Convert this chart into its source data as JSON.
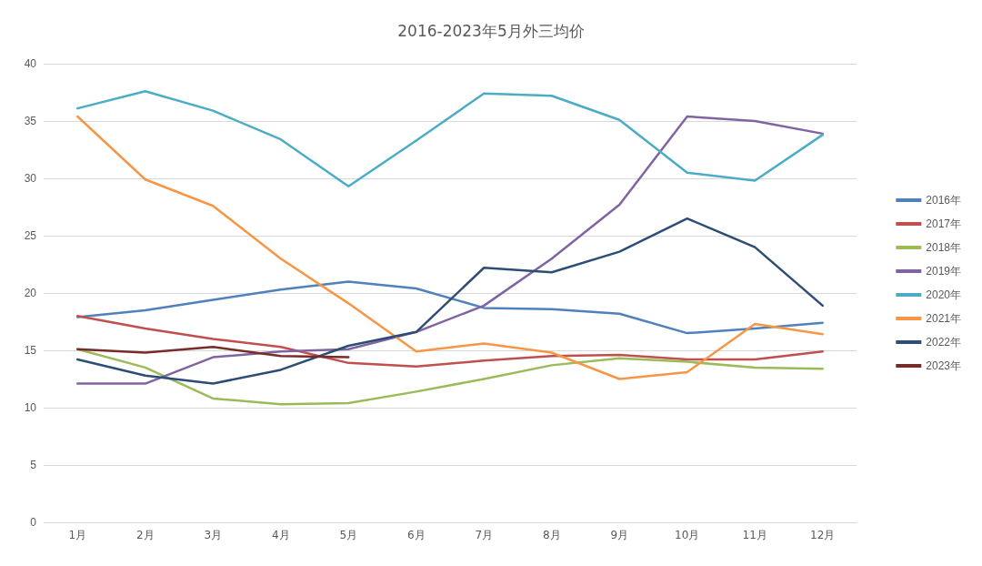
{
  "chart_data": {
    "type": "line",
    "title": "2016-2023年5月外三均价",
    "categories": [
      "1月",
      "2月",
      "3月",
      "4月",
      "5月",
      "6月",
      "7月",
      "8月",
      "9月",
      "10月",
      "11月",
      "12月"
    ],
    "series": [
      {
        "name": "2016年",
        "color": "#4f81bd",
        "values": [
          17.9,
          18.5,
          19.4,
          20.3,
          21.0,
          20.4,
          18.7,
          18.6,
          18.2,
          16.5,
          16.9,
          17.4
        ]
      },
      {
        "name": "2017年",
        "color": "#c0504d",
        "values": [
          18.0,
          16.9,
          16.0,
          15.3,
          13.9,
          13.6,
          14.1,
          14.5,
          14.6,
          14.2,
          14.2,
          14.9
        ]
      },
      {
        "name": "2018年",
        "color": "#9bbb59",
        "values": [
          15.1,
          13.5,
          10.8,
          10.3,
          10.4,
          11.4,
          12.5,
          13.7,
          14.3,
          14.0,
          13.5,
          13.4
        ]
      },
      {
        "name": "2019年",
        "color": "#8064a2",
        "values": [
          12.1,
          12.1,
          14.4,
          14.9,
          15.1,
          16.6,
          18.9,
          23.0,
          27.7,
          35.4,
          35.0,
          33.9
        ]
      },
      {
        "name": "2020年",
        "color": "#4bacc6",
        "values": [
          36.1,
          37.6,
          35.9,
          33.4,
          29.3,
          33.3,
          37.4,
          37.2,
          35.1,
          30.5,
          29.8,
          33.8
        ]
      },
      {
        "name": "2021年",
        "color": "#f79646",
        "values": [
          35.4,
          29.9,
          27.6,
          23.0,
          19.1,
          14.9,
          15.6,
          14.8,
          12.5,
          13.1,
          17.3,
          16.4
        ]
      },
      {
        "name": "2022年",
        "color": "#2c4d75",
        "values": [
          14.2,
          12.8,
          12.1,
          13.3,
          15.4,
          16.6,
          22.2,
          21.8,
          23.6,
          26.5,
          24.0,
          18.9
        ]
      },
      {
        "name": "2023年",
        "color": "#772c2a",
        "values": [
          15.1,
          14.8,
          15.3,
          14.5,
          14.4,
          null,
          null,
          null,
          null,
          null,
          null,
          null
        ]
      }
    ],
    "ylim": [
      0,
      40
    ],
    "yticks": [
      0,
      5,
      10,
      15,
      20,
      25,
      30,
      35,
      40
    ],
    "grid": "y",
    "legend": "right",
    "marker": "none",
    "line_style": "solid"
  }
}
